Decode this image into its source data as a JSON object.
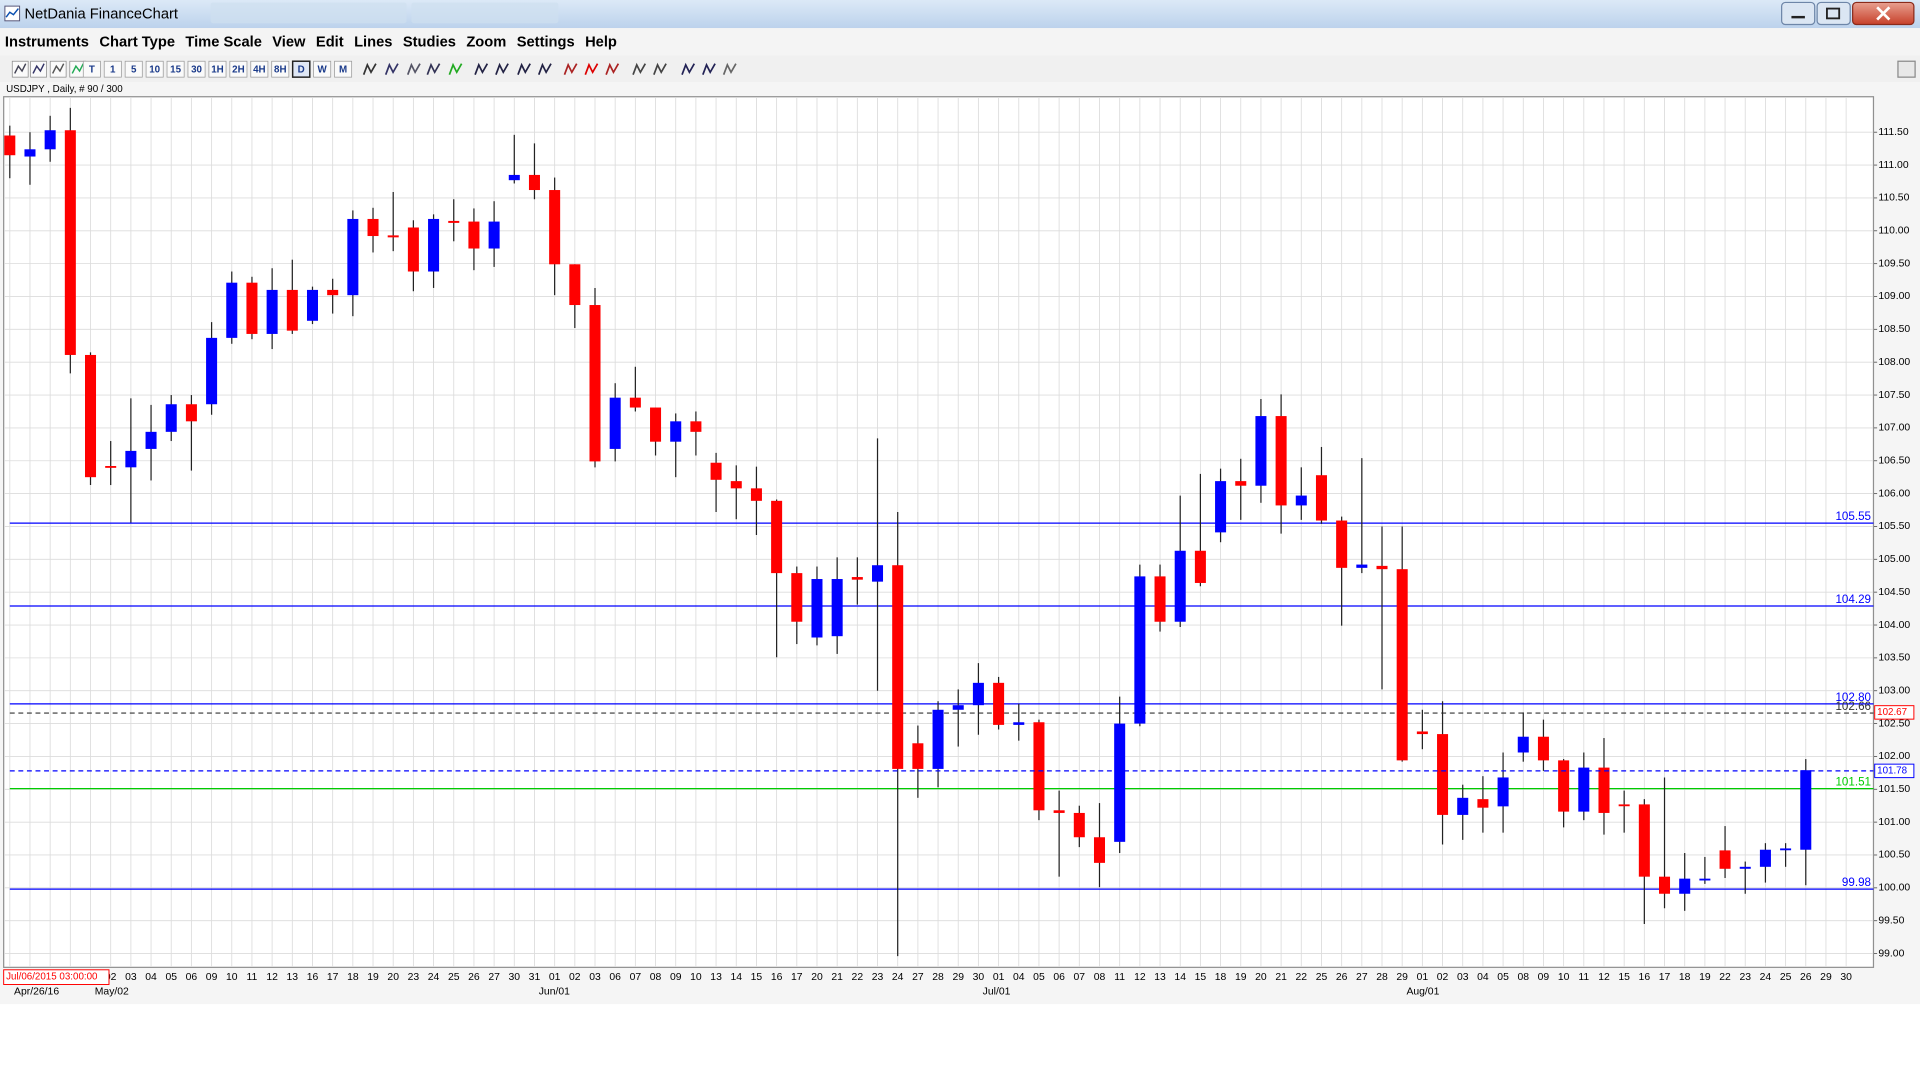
{
  "window": {
    "title": "NetDania FinanceChart"
  },
  "menu": [
    "Instruments",
    "Chart Type",
    "Time Scale",
    "View",
    "Edit",
    "Lines",
    "Studies",
    "Zoom",
    "Settings",
    "Help"
  ],
  "toolbar": {
    "timeframes": [
      "T",
      "1",
      "5",
      "10",
      "15",
      "30",
      "1H",
      "2H",
      "4H",
      "8H",
      "D",
      "W",
      "M"
    ],
    "selected": "D"
  },
  "chart_data": {
    "type": "candlestick",
    "instrument_label": "USDJPY , Daily, # 90 / 300",
    "cursor_time": "Jul/06/2015 03:00:00",
    "categories": [
      null,
      null,
      null,
      null,
      null,
      "02",
      "03",
      "04",
      "05",
      "06",
      "09",
      "10",
      "11",
      "12",
      "13",
      "16",
      "17",
      "18",
      "19",
      "20",
      "23",
      "24",
      "25",
      "26",
      "27",
      "30",
      "31",
      "01",
      "02",
      "03",
      "06",
      "07",
      "08",
      "09",
      "10",
      "13",
      "14",
      "15",
      "16",
      "17",
      "20",
      "21",
      "22",
      "23",
      "24",
      "27",
      "28",
      "29",
      "30",
      "01",
      "04",
      "05",
      "06",
      "07",
      "08",
      "11",
      "12",
      "13",
      "14",
      "15",
      "18",
      "19",
      "20",
      "21",
      "22",
      "25",
      "26",
      "27",
      "28",
      "29",
      "01",
      "02",
      "03",
      "04",
      "05",
      "08",
      "09",
      "10",
      "11",
      "12",
      "15",
      "16",
      "17",
      "18",
      "19",
      "22",
      "23",
      "24",
      "25",
      "26",
      "29",
      "30"
    ],
    "category_groups": [
      null,
      "Apr/26/16",
      null,
      null,
      null,
      "May/02",
      null,
      null,
      null,
      null,
      null,
      null,
      null,
      null,
      null,
      null,
      null,
      null,
      null,
      null,
      null,
      null,
      null,
      null,
      null,
      null,
      null,
      "Jun/01",
      null,
      null,
      null,
      null,
      null,
      null,
      null,
      null,
      null,
      null,
      null,
      null,
      null,
      null,
      null,
      null,
      null,
      null,
      null,
      null,
      null,
      "Jul/01",
      null,
      null,
      null,
      null,
      null,
      null,
      null,
      null,
      null,
      null,
      null,
      null,
      null,
      null,
      null,
      null,
      null,
      null,
      null,
      null,
      "Aug/01",
      null,
      null,
      null,
      null,
      null,
      null,
      null,
      null,
      null,
      null,
      null,
      null,
      null,
      null,
      null,
      null,
      null,
      null,
      null,
      null,
      null
    ],
    "open": [
      111.45,
      111.13,
      111.24,
      111.53,
      108.11,
      106.42,
      106.4,
      106.68,
      106.94,
      107.36,
      107.36,
      108.37,
      109.21,
      108.43,
      109.1,
      108.63,
      109.1,
      109.02,
      110.18,
      109.93,
      110.05,
      109.38,
      110.15,
      110.14,
      109.73,
      110.77,
      110.85,
      110.62,
      109.49,
      108.87,
      106.68,
      107.46,
      107.31,
      106.79,
      107.1,
      106.47,
      106.19,
      106.08,
      105.89,
      104.79,
      103.81,
      103.83,
      104.73,
      104.66,
      104.91,
      102.2,
      101.81,
      102.71,
      102.78,
      103.12,
      102.48,
      102.52,
      101.18,
      101.14,
      100.77,
      100.7,
      102.5,
      104.74,
      104.05,
      105.13,
      105.41,
      106.19,
      106.12,
      107.18,
      105.82,
      106.28,
      105.59,
      104.87,
      104.9,
      104.85,
      102.38,
      102.34,
      101.11,
      101.35,
      101.24,
      102.06,
      102.3,
      101.94,
      101.16,
      101.83,
      101.27,
      101.27,
      100.17,
      99.91,
      100.12,
      100.57,
      100.29,
      100.32,
      100.59,
      100.58,
      null,
      null
    ],
    "high": [
      111.6,
      111.5,
      111.75,
      111.87,
      108.15,
      106.8,
      107.45,
      107.35,
      107.5,
      107.5,
      108.61,
      109.38,
      109.3,
      109.43,
      109.56,
      109.15,
      109.27,
      110.31,
      110.35,
      110.59,
      110.16,
      110.25,
      110.48,
      110.34,
      110.45,
      111.46,
      111.33,
      110.81,
      109.49,
      109.13,
      107.68,
      107.93,
      107.31,
      107.22,
      107.25,
      106.62,
      106.43,
      106.41,
      105.91,
      104.89,
      104.89,
      105.03,
      105.03,
      106.84,
      105.72,
      102.47,
      102.84,
      103.02,
      103.42,
      103.21,
      102.8,
      102.56,
      101.48,
      101.25,
      101.29,
      102.91,
      104.92,
      104.92,
      105.97,
      106.3,
      106.38,
      106.53,
      107.44,
      107.51,
      106.4,
      106.71,
      105.65,
      106.54,
      105.5,
      105.5,
      102.71,
      102.84,
      101.57,
      101.7,
      102.06,
      102.67,
      102.56,
      101.96,
      102.06,
      102.28,
      101.48,
      101.35,
      101.68,
      100.53,
      100.47,
      100.94,
      100.4,
      100.68,
      100.68,
      101.96,
      null,
      null
    ],
    "low": [
      110.8,
      110.7,
      111.05,
      107.83,
      106.13,
      106.13,
      105.56,
      106.2,
      106.8,
      106.35,
      107.2,
      108.28,
      108.35,
      108.2,
      108.43,
      108.58,
      108.74,
      108.7,
      109.67,
      109.69,
      109.08,
      109.13,
      109.84,
      109.4,
      109.45,
      110.72,
      110.48,
      109.02,
      108.52,
      106.4,
      106.49,
      107.25,
      106.58,
      106.25,
      106.58,
      105.72,
      105.61,
      105.37,
      103.51,
      103.71,
      103.69,
      103.56,
      104.31,
      103.0,
      98.96,
      101.37,
      101.53,
      102.15,
      102.33,
      102.41,
      102.24,
      101.03,
      100.17,
      100.62,
      100.01,
      100.53,
      102.46,
      103.9,
      103.97,
      104.59,
      105.26,
      105.6,
      105.86,
      105.39,
      105.6,
      105.54,
      103.99,
      104.79,
      103.02,
      101.92,
      102.11,
      100.66,
      100.73,
      100.84,
      100.84,
      101.92,
      101.78,
      100.92,
      101.03,
      100.81,
      100.84,
      99.45,
      99.69,
      99.65,
      100.06,
      100.15,
      99.91,
      100.08,
      100.32,
      100.04,
      null,
      null
    ],
    "close": [
      111.15,
      111.24,
      111.53,
      108.11,
      106.25,
      106.4,
      106.65,
      106.94,
      107.36,
      107.1,
      108.37,
      109.21,
      108.43,
      109.1,
      108.48,
      109.1,
      109.02,
      110.18,
      109.92,
      109.9,
      109.38,
      110.18,
      110.12,
      109.73,
      110.14,
      110.85,
      110.62,
      109.49,
      108.87,
      106.49,
      107.46,
      107.31,
      106.79,
      107.1,
      106.94,
      106.21,
      106.08,
      105.89,
      104.79,
      104.05,
      104.7,
      104.7,
      104.69,
      104.91,
      101.81,
      101.81,
      102.71,
      102.78,
      103.12,
      102.48,
      102.52,
      101.18,
      101.14,
      100.77,
      100.38,
      102.5,
      104.74,
      104.05,
      105.13,
      104.64,
      106.19,
      106.12,
      107.18,
      105.82,
      105.97,
      105.59,
      104.87,
      104.92,
      104.85,
      101.94,
      102.34,
      101.11,
      101.37,
      101.22,
      101.68,
      102.3,
      101.94,
      101.16,
      101.83,
      101.14,
      101.25,
      100.17,
      99.91,
      100.14,
      100.14,
      100.29,
      100.32,
      100.58,
      100.6,
      101.79,
      null,
      null
    ],
    "up_color": "#0000ff",
    "down_color": "#ff0000",
    "ylim": [
      98.79,
      112.04
    ],
    "yticks": [
      {
        "value": 99,
        "label": "99.00"
      },
      {
        "value": 99.5,
        "label": "99.50"
      },
      {
        "value": 100,
        "label": "100.00"
      },
      {
        "value": 100.5,
        "label": "100.50"
      },
      {
        "value": 101,
        "label": "101.00"
      },
      {
        "value": 101.5,
        "label": "101.50"
      },
      {
        "value": 102,
        "label": "102.00"
      },
      {
        "value": 102.5,
        "label": "102.50"
      },
      {
        "value": 103,
        "label": "103.00"
      },
      {
        "value": 103.5,
        "label": "103.50"
      },
      {
        "value": 104,
        "label": "104.00"
      },
      {
        "value": 104.5,
        "label": "104.50"
      },
      {
        "value": 105,
        "label": "105.00"
      },
      {
        "value": 105.5,
        "label": "105.50"
      },
      {
        "value": 106,
        "label": "106.00"
      },
      {
        "value": 106.5,
        "label": "106.50"
      },
      {
        "value": 107,
        "label": "107.00"
      },
      {
        "value": 107.5,
        "label": "107.50"
      },
      {
        "value": 108,
        "label": "108.00"
      },
      {
        "value": 108.5,
        "label": "108.50"
      },
      {
        "value": 109,
        "label": "109.00"
      },
      {
        "value": 109.5,
        "label": "109.50"
      },
      {
        "value": 110,
        "label": "110.00"
      },
      {
        "value": 110.5,
        "label": "110.50"
      },
      {
        "value": 111,
        "label": "111.00"
      },
      {
        "value": 111.5,
        "label": "111.50"
      }
    ],
    "grid": true,
    "levels": [
      {
        "value": 105.55,
        "color": "#0000ff",
        "dashed": false
      },
      {
        "value": 104.29,
        "color": "#0000ff",
        "dashed": false
      },
      {
        "value": 102.8,
        "label": "102.80",
        "color": "#0000ff",
        "dashed": false
      },
      {
        "value": 102.66,
        "color": "#333333",
        "dashed": true
      },
      {
        "value": 101.51,
        "color": "#00cc00",
        "dashed": false
      },
      {
        "value": 99.98,
        "color": "#0000ff",
        "dashed": false
      }
    ],
    "price_markers": [
      {
        "value": 102.67,
        "color": "#ff0000",
        "dashed": false
      },
      {
        "value": 101.78,
        "color": "#0000ff",
        "dashed": true
      }
    ]
  }
}
